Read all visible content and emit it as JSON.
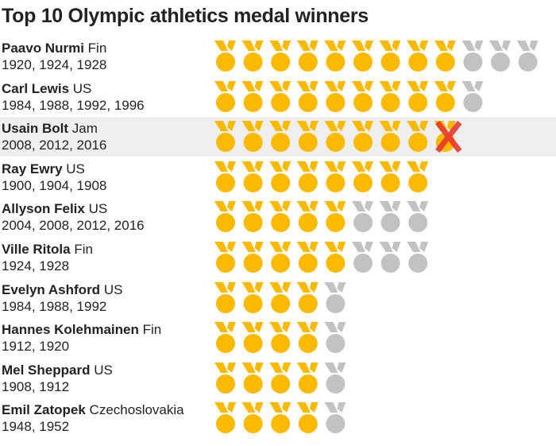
{
  "colors": {
    "gold": "#fbb900",
    "silver": "#c2c2c2",
    "cross": "#e8302c",
    "highlight": "#efefef"
  },
  "chart_data": {
    "type": "pictogram",
    "title": "Top 10 Olympic athletics medal winners",
    "series_legend": [
      "gold",
      "silver"
    ],
    "athletes": [
      {
        "name": "Paavo Nurmi",
        "country": "Fin",
        "years": "1920, 1924, 1928",
        "gold": 9,
        "silver": 3,
        "stripped": 0
      },
      {
        "name": "Carl Lewis",
        "country": "US",
        "years": "1984, 1988, 1992, 1996",
        "gold": 9,
        "silver": 1,
        "stripped": 0
      },
      {
        "name": "Usain Bolt",
        "country": "Jam",
        "years": "2008, 2012, 2016",
        "gold": 8,
        "silver": 0,
        "stripped": 1,
        "highlight": true
      },
      {
        "name": "Ray Ewry",
        "country": "US",
        "years": "1900, 1904, 1908",
        "gold": 8,
        "silver": 0,
        "stripped": 0
      },
      {
        "name": "Allyson Felix",
        "country": "US",
        "years": "2004, 2008, 2012, 2016",
        "gold": 5,
        "silver": 3,
        "stripped": 0
      },
      {
        "name": "Ville Ritola",
        "country": "Fin",
        "years": "1924, 1928",
        "gold": 5,
        "silver": 3,
        "stripped": 0
      },
      {
        "name": "Evelyn Ashford",
        "country": "US",
        "years": "1984, 1988, 1992",
        "gold": 4,
        "silver": 1,
        "stripped": 0
      },
      {
        "name": "Hannes Kolehmainen",
        "country": "Fin",
        "years": "1912, 1920",
        "gold": 4,
        "silver": 1,
        "stripped": 0
      },
      {
        "name": "Mel Sheppard",
        "country": "US",
        "years": "1908, 1912",
        "gold": 4,
        "silver": 1,
        "stripped": 0
      },
      {
        "name": "Emil Zatopek",
        "country": "Czechoslovakia",
        "years": "1948, 1952",
        "gold": 4,
        "silver": 1,
        "stripped": 0
      }
    ]
  }
}
